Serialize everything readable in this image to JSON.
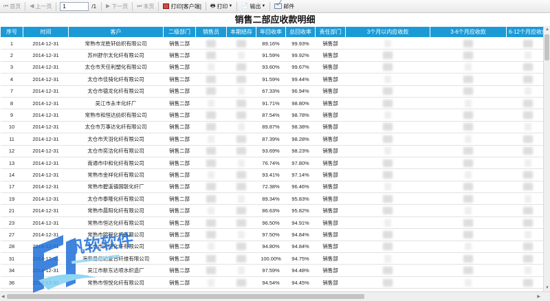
{
  "toolbar": {
    "first_label": "首页",
    "prev_label": "上一页",
    "page_value": "1",
    "page_total": "/1",
    "next_label": "下一页",
    "last_label": "末页",
    "print_client_label": "打印[客户端]",
    "print_label": "打印",
    "export_label": "输出",
    "mail_label": "邮件"
  },
  "report": {
    "title": "销售二部应收款明细"
  },
  "table": {
    "headers": [
      "序号",
      "时间",
      "客户",
      "二级部门",
      "销售员",
      "本期结存",
      "年回收率",
      "总回收率",
      "责任部门",
      "3个月以内应收款",
      "3-6个月应收款",
      "6-12个月应收款"
    ],
    "rows": [
      {
        "no": "1",
        "date": "2014-12-31",
        "customer": "常熟市龙胜轩纺织有限公司",
        "dept": "销售二部",
        "year_rate": "89.16%",
        "total_rate": "99.93%",
        "resp": "销售部"
      },
      {
        "no": "2",
        "date": "2014-12-31",
        "customer": "苏州舒尔太化纤有限公司",
        "dept": "销售二部",
        "year_rate": "91.59%",
        "total_rate": "99.92%",
        "resp": "销售部"
      },
      {
        "no": "3",
        "date": "2014-12-31",
        "customer": "太仓市天任利塑化有限公司",
        "dept": "销售二部",
        "year_rate": "93.60%",
        "total_rate": "99.67%",
        "resp": "销售部"
      },
      {
        "no": "4",
        "date": "2014-12-31",
        "customer": "太仓市佳骑化纤有限公司",
        "dept": "销售二部",
        "year_rate": "91.59%",
        "total_rate": "99.44%",
        "resp": "销售部"
      },
      {
        "no": "7",
        "date": "2014-12-31",
        "customer": "太仓市德龙化纤有限公司",
        "dept": "销售二部",
        "year_rate": "67.33%",
        "total_rate": "96.94%",
        "resp": "销售部"
      },
      {
        "no": "8",
        "date": "2014-12-31",
        "customer": "吴江市永丰化纤厂",
        "dept": "销售二部",
        "year_rate": "91.71%",
        "total_rate": "98.80%",
        "resp": "销售部"
      },
      {
        "no": "9",
        "date": "2014-12-31",
        "customer": "常熟市和恒达纺织有限公司",
        "dept": "销售二部",
        "year_rate": "87.54%",
        "total_rate": "98.78%",
        "resp": "销售部"
      },
      {
        "no": "10",
        "date": "2014-12-31",
        "customer": "太仓市万事达化纤有限公司",
        "dept": "销售二部",
        "year_rate": "89.87%",
        "total_rate": "98.38%",
        "resp": "销售部"
      },
      {
        "no": "11",
        "date": "2014-12-31",
        "customer": "太仓市天羽化纤有限公司",
        "dept": "销售二部",
        "year_rate": "87.39%",
        "total_rate": "98.28%",
        "resp": "销售部"
      },
      {
        "no": "12",
        "date": "2014-12-31",
        "customer": "太仓市奕洁化纤有限公司",
        "dept": "销售二部",
        "year_rate": "93.69%",
        "total_rate": "98.23%",
        "resp": "销售部"
      },
      {
        "no": "13",
        "date": "2014-12-31",
        "customer": "南通市中和化纤有限公司",
        "dept": "销售二部",
        "year_rate": "76.74%",
        "total_rate": "97.80%",
        "resp": "销售部"
      },
      {
        "no": "14",
        "date": "2014-12-31",
        "customer": "常熟市金祥化纤有限公司",
        "dept": "销售二部",
        "year_rate": "93.41%",
        "total_rate": "97.14%",
        "resp": "销售部"
      },
      {
        "no": "17",
        "date": "2014-12-31",
        "customer": "常熟市碧溪镇国联化纤厂",
        "dept": "销售二部",
        "year_rate": "72.38%",
        "total_rate": "96.46%",
        "resp": "销售部"
      },
      {
        "no": "19",
        "date": "2014-12-31",
        "customer": "太仓市泰隆化纤有限公司",
        "dept": "销售二部",
        "year_rate": "89.34%",
        "total_rate": "95.83%",
        "resp": "销售部"
      },
      {
        "no": "21",
        "date": "2014-12-31",
        "customer": "常熟市晨阳化纤有限公司",
        "dept": "销售二部",
        "year_rate": "86.63%",
        "total_rate": "95.82%",
        "resp": "销售部"
      },
      {
        "no": "23",
        "date": "2014-12-31",
        "customer": "常熟市恒达化纤有限公司",
        "dept": "销售二部",
        "year_rate": "96.50%",
        "total_rate": "94.91%",
        "resp": "销售部"
      },
      {
        "no": "27",
        "date": "2014-12-31",
        "customer": "常熟市锦程化纤有限公司",
        "dept": "销售二部",
        "year_rate": "97.50%",
        "total_rate": "94.84%",
        "resp": "销售部"
      },
      {
        "no": "28",
        "date": "2014-12-31",
        "customer": "太仓市天恒化纤有限公司",
        "dept": "销售二部",
        "year_rate": "94.80%",
        "total_rate": "94.84%",
        "resp": "销售部"
      },
      {
        "no": "31",
        "date": "2014-12-31",
        "customer": "海安县亿达夏合纤维有限公司",
        "dept": "销售二部",
        "year_rate": "100.00%",
        "total_rate": "94.75%",
        "resp": "销售部"
      },
      {
        "no": "34",
        "date": "2014-12-31",
        "customer": "吴江市新东达喷水织造厂",
        "dept": "销售二部",
        "year_rate": "97.59%",
        "total_rate": "94.48%",
        "resp": "销售部"
      },
      {
        "no": "36",
        "date": "2014-12-31",
        "customer": "常熟市恒悦化纤有限公司",
        "dept": "销售二部",
        "year_rate": "94.54%",
        "total_rate": "94.45%",
        "resp": "销售部"
      }
    ]
  },
  "watermark": {
    "brand_text": "帆软软件",
    "brand_color": "#1e6fd9"
  },
  "colors": {
    "header_bg": "#1b9ad6",
    "header_text": "#ffffff"
  }
}
